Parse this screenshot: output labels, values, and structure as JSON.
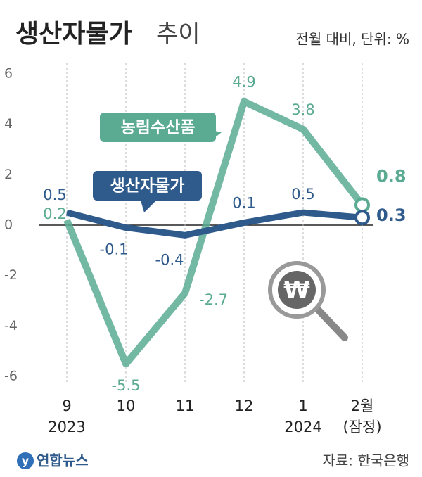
{
  "chart_data": {
    "type": "line",
    "title": "생산자물가",
    "title_suffix": "추이",
    "subtitle": "전월 대비, 단위: %",
    "categories": [
      "9",
      "10",
      "11",
      "12",
      "1",
      "2월"
    ],
    "category_sublabels": [
      "2023",
      null,
      null,
      null,
      "2024",
      "(잠정)"
    ],
    "series": [
      {
        "name": "농림수산품",
        "color": "#5bab93",
        "values": [
          0.2,
          -5.5,
          -2.7,
          4.9,
          3.8,
          0.8
        ]
      },
      {
        "name": "생산자물가",
        "color": "#2f5a8c",
        "values": [
          0.5,
          -0.1,
          -0.4,
          0.1,
          0.5,
          0.3
        ]
      }
    ],
    "ylim": [
      -6.5,
      6.5
    ],
    "yticks": [
      -6,
      -4,
      -2,
      0,
      2,
      4,
      6
    ],
    "grid": true,
    "source": "자료: 한국은행",
    "logo": "연합뉴스"
  }
}
